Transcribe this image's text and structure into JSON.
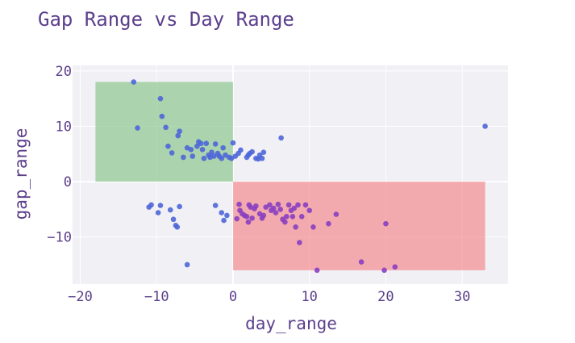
{
  "chart_data": {
    "type": "scatter",
    "title": "Gap Range vs Day Range",
    "xlabel": "day_range",
    "ylabel": "gap_range",
    "xlim": [
      -21,
      36
    ],
    "ylim": [
      -18.5,
      21
    ],
    "xticks": [
      -20,
      -10,
      0,
      10,
      20,
      30
    ],
    "yticks": [
      -10,
      0,
      10,
      20
    ],
    "xtick_labels": [
      "−20",
      "−10",
      "0",
      "10",
      "20",
      "30"
    ],
    "ytick_labels": [
      "−10",
      "0",
      "10",
      "20"
    ],
    "grid": true,
    "background": "#f0f0f5",
    "point_colors": [
      "#4e66d8",
      "#8a3fc0"
    ],
    "regions": [
      {
        "x0": -18,
        "x1": 0,
        "y0": 0,
        "y1": 18,
        "color": "#7bbf7e",
        "opacity": 0.6
      },
      {
        "x0": 0,
        "x1": 33,
        "y0": -16,
        "y1": 0,
        "color": "#f47b80",
        "opacity": 0.6
      }
    ],
    "points": [
      [
        -13,
        18
      ],
      [
        -12.5,
        9.7
      ],
      [
        -9.5,
        15
      ],
      [
        -9.3,
        11.8
      ],
      [
        -8.8,
        9.8
      ],
      [
        -8.5,
        6.4
      ],
      [
        -8,
        5.2
      ],
      [
        -7.2,
        8.3
      ],
      [
        -7,
        9.1
      ],
      [
        -6.5,
        4.4
      ],
      [
        -6,
        6.1
      ],
      [
        -5.5,
        5.8
      ],
      [
        -5.3,
        4.6
      ],
      [
        -4.7,
        6.4
      ],
      [
        -4.5,
        7.2
      ],
      [
        -4.2,
        6.9
      ],
      [
        -4.0,
        5.8
      ],
      [
        -3.8,
        4.2
      ],
      [
        -3.5,
        6.9
      ],
      [
        -3.2,
        4.8
      ],
      [
        -3.0,
        4.4
      ],
      [
        -2.8,
        5.3
      ],
      [
        -2.5,
        4.6
      ],
      [
        -2.3,
        6.8
      ],
      [
        -2.0,
        5.1
      ],
      [
        -1.8,
        4.6
      ],
      [
        -1.5,
        4.2
      ],
      [
        -1.3,
        6.1
      ],
      [
        -1,
        4.8
      ],
      [
        -0.5,
        4.4
      ],
      [
        -0.2,
        4.2
      ],
      [
        0,
        7
      ],
      [
        0.3,
        4.6
      ],
      [
        0.7,
        5.1
      ],
      [
        1.0,
        5.7
      ],
      [
        1.8,
        4.4
      ],
      [
        2.0,
        4.8
      ],
      [
        2.2,
        5.1
      ],
      [
        2.5,
        5.4
      ],
      [
        3.0,
        4.2
      ],
      [
        3.3,
        4.1
      ],
      [
        3.5,
        4.8
      ],
      [
        3.8,
        4.2
      ],
      [
        4.0,
        5.3
      ],
      [
        6.3,
        7.9
      ],
      [
        33,
        10
      ],
      [
        -11.0,
        -4.6
      ],
      [
        -10.7,
        -4.2
      ],
      [
        -9.8,
        -5.6
      ],
      [
        -9.5,
        -4.3
      ],
      [
        -8.2,
        -5.1
      ],
      [
        -7.8,
        -6.8
      ],
      [
        -7.5,
        -7.9
      ],
      [
        -7.3,
        -8.2
      ],
      [
        -7.0,
        -4.5
      ],
      [
        -6.0,
        -15
      ],
      [
        -2.3,
        -4.3
      ],
      [
        -1.5,
        -5.6
      ],
      [
        -1.2,
        -7.0
      ],
      [
        -0.8,
        -6.1
      ],
      [
        0.5,
        -6.7
      ],
      [
        0.8,
        -4.1
      ],
      [
        0.9,
        -5.2
      ],
      [
        1.2,
        -5.8
      ],
      [
        1.5,
        -6.1
      ],
      [
        1.8,
        -6.3
      ],
      [
        2.0,
        -7.3
      ],
      [
        2.1,
        -4.2
      ],
      [
        2.3,
        -4.6
      ],
      [
        2.5,
        -6.6
      ],
      [
        2.8,
        -4.9
      ],
      [
        3.0,
        -4.4
      ],
      [
        3.5,
        -5.8
      ],
      [
        3.8,
        -6.6
      ],
      [
        4.0,
        -6.1
      ],
      [
        4.3,
        -4.6
      ],
      [
        4.8,
        -4.2
      ],
      [
        5.0,
        -5.2
      ],
      [
        5.3,
        -4.8
      ],
      [
        5.6,
        -5.6
      ],
      [
        5.9,
        -4.1
      ],
      [
        6.2,
        -5.0
      ],
      [
        6.5,
        -6.8
      ],
      [
        6.8,
        -7.3
      ],
      [
        7.0,
        -6.3
      ],
      [
        7.3,
        -4.2
      ],
      [
        7.6,
        -5.2
      ],
      [
        7.8,
        -6.3
      ],
      [
        8.0,
        -4.8
      ],
      [
        8.2,
        -8.2
      ],
      [
        8.5,
        -4.2
      ],
      [
        8.7,
        -11
      ],
      [
        9.0,
        -6.3
      ],
      [
        9.5,
        -4.2
      ],
      [
        10.0,
        -5.2
      ],
      [
        10.5,
        -8.2
      ],
      [
        11,
        -16
      ],
      [
        12.5,
        -7.6
      ],
      [
        13.5,
        -5.9
      ],
      [
        16.8,
        -14.5
      ],
      [
        19.8,
        -16
      ],
      [
        20.0,
        -7.6
      ],
      [
        21.2,
        -15.4
      ]
    ]
  }
}
